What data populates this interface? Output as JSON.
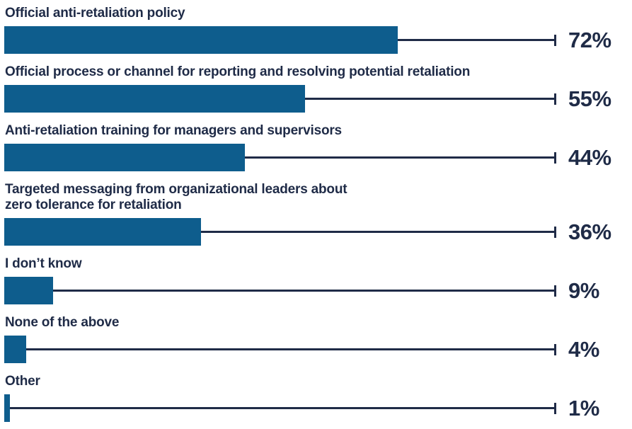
{
  "chart_data": {
    "type": "bar",
    "orientation": "horizontal",
    "title": "",
    "xlabel": "",
    "ylabel": "",
    "unit": "%",
    "axis_max": 100,
    "whisker_to": 100,
    "grid": false,
    "legend": false,
    "categories": [
      "Official anti-retaliation policy",
      "Official process or channel for reporting and resolving potential retaliation",
      "Anti-retaliation training for managers and supervisors",
      "Targeted messaging from organizational leaders about zero tolerance for retaliation",
      "I don’t know",
      "None of the above",
      "Other"
    ],
    "label_lines": [
      [
        "Official anti-retaliation policy"
      ],
      [
        "Official process or channel for reporting and resolving potential retaliation"
      ],
      [
        "Anti-retaliation training for managers and supervisors"
      ],
      [
        "Targeted messaging from organizational leaders about",
        "zero tolerance for retaliation"
      ],
      [
        "I don’t know"
      ],
      [
        "None of the above"
      ],
      [
        "Other"
      ]
    ],
    "values": [
      72,
      55,
      44,
      36,
      9,
      4,
      1
    ],
    "value_labels": [
      "72%",
      "55%",
      "44%",
      "36%",
      "9%",
      "4%",
      "1%"
    ],
    "colors": {
      "bar": "#0e5d8d",
      "navy": "#1f2b47",
      "background": "#ffffff"
    }
  }
}
